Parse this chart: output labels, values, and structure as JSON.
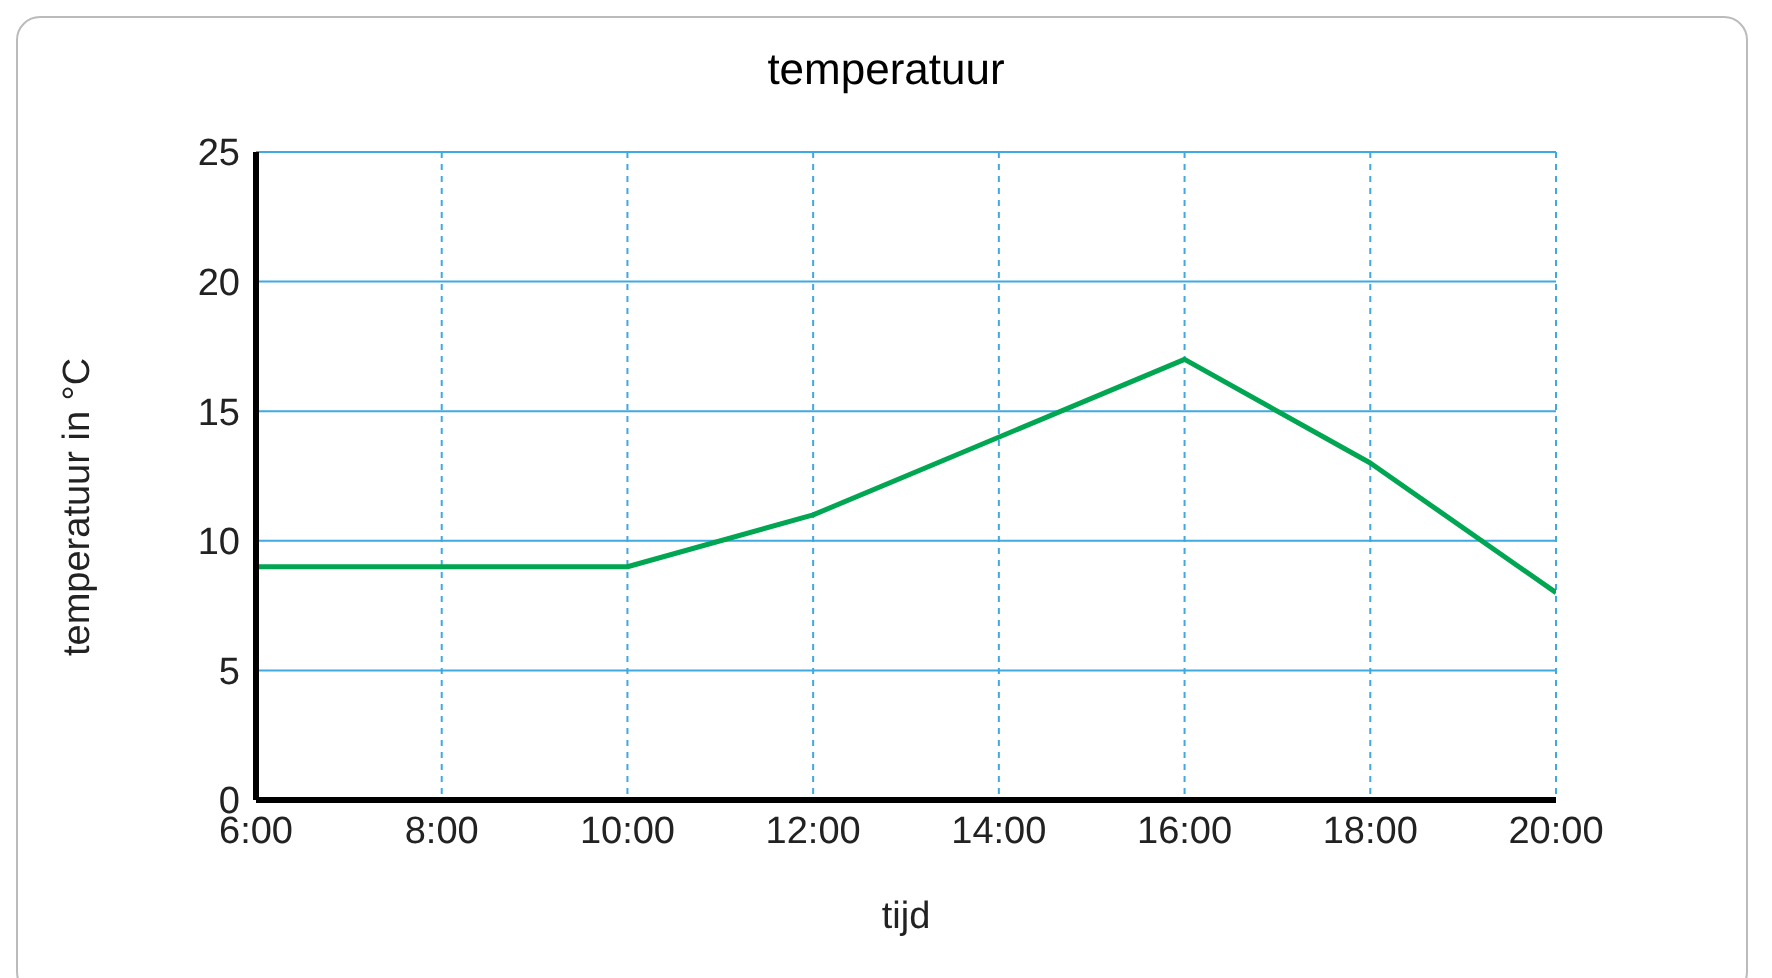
{
  "chart_data": {
    "type": "line",
    "title": "temperatuur",
    "xlabel": "tijd",
    "ylabel": "temperatuur in °C",
    "x": [
      6,
      10,
      12,
      16,
      18,
      20
    ],
    "series": [
      {
        "color": "#00a651",
        "values": [
          9,
          9,
          11,
          17,
          13,
          8
        ]
      }
    ],
    "xlim": [
      6,
      20
    ],
    "xticks": [
      {
        "value": 6,
        "label": "6:00"
      },
      {
        "value": 8,
        "label": "8:00"
      },
      {
        "value": 10,
        "label": "10:00"
      },
      {
        "value": 12,
        "label": "12:00"
      },
      {
        "value": 14,
        "label": "14:00"
      },
      {
        "value": 16,
        "label": "16:00"
      },
      {
        "value": 18,
        "label": "18:00"
      },
      {
        "value": 20,
        "label": "20:00"
      }
    ],
    "ylim": [
      0,
      25
    ],
    "yticks": [
      0,
      5,
      10,
      15,
      20,
      25
    ],
    "grid": true,
    "legend": false,
    "marker": "none",
    "line_style": "solid"
  }
}
